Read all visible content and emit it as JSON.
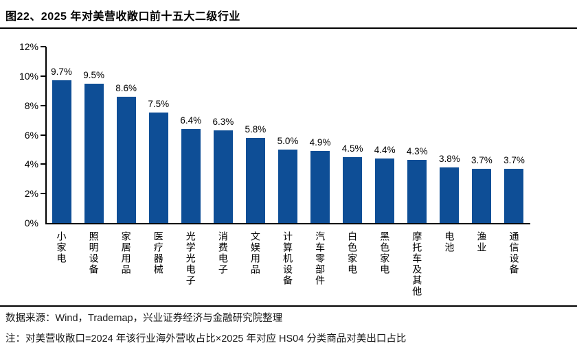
{
  "title": "图22、2025 年对美营收敞口前十五大二级行业",
  "chart_data": {
    "type": "bar",
    "title": "图22、2025 年对美营收敞口前十五大二级行业",
    "categories": [
      "小家电",
      "照明设备",
      "家居用品",
      "医疗器械",
      "光学光电子",
      "消费电子",
      "文娱用品",
      "计算机设备",
      "汽车零部件",
      "白色家电",
      "黑色家电",
      "摩托车及其他",
      "电池",
      "渔业",
      "通信设备"
    ],
    "values": [
      9.7,
      9.5,
      8.6,
      7.5,
      6.4,
      6.3,
      5.8,
      5.0,
      4.9,
      4.5,
      4.4,
      4.3,
      3.8,
      3.7,
      3.7
    ],
    "value_labels": [
      "9.7%",
      "9.5%",
      "8.6%",
      "7.5%",
      "6.4%",
      "6.3%",
      "5.8%",
      "5.0%",
      "4.9%",
      "4.5%",
      "4.4%",
      "4.3%",
      "3.8%",
      "3.7%",
      "3.7%"
    ],
    "xlabel": "",
    "ylabel": "",
    "ylim": [
      0,
      12
    ],
    "ytick_values": [
      0,
      2,
      4,
      6,
      8,
      10,
      12
    ],
    "ytick_labels": [
      "0%",
      "2%",
      "4%",
      "6%",
      "8%",
      "10%",
      "12%"
    ],
    "bar_color": "#0E4E96",
    "axis_color": "#000000",
    "grid": false,
    "legend": null
  },
  "footer": {
    "source": "数据来源：Wind，Trademap，兴业证券经济与金融研究院整理",
    "note": "注：对美营收敞口=2024 年该行业海外营收占比×2025 年对应 HS04 分类商品对美出口占比"
  }
}
